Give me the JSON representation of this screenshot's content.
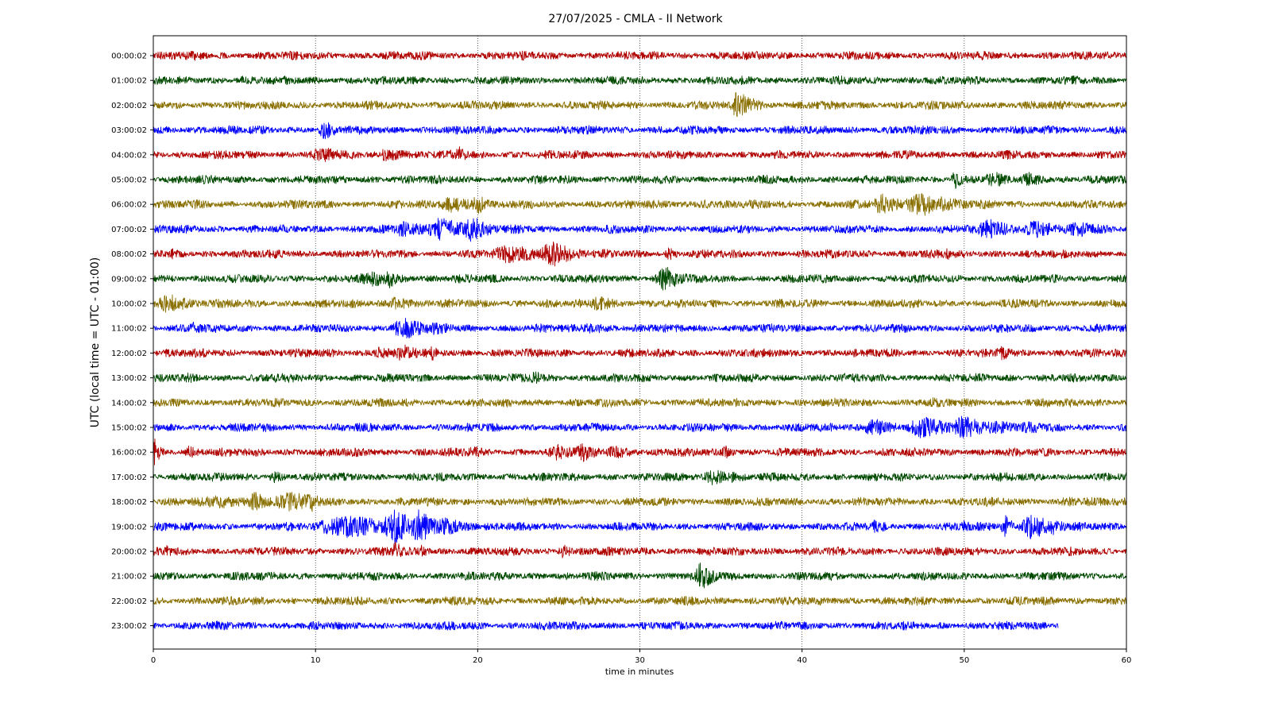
{
  "chart_data": {
    "type": "line",
    "title": "27/07/2025 - CMLA - II Network",
    "xlabel": "time in minutes",
    "ylabel": "UTC (local time = UTC - 01:00)",
    "xlim": [
      0,
      60
    ],
    "x_ticks": [
      0,
      10,
      20,
      30,
      40,
      50,
      60
    ],
    "grid": "vertical dotted",
    "color_cycle": [
      "#b00000",
      "#004a00",
      "#8a7000",
      "#0000ff"
    ],
    "series": [
      {
        "name": "00:00:02",
        "end": 60,
        "events": [
          {
            "t": 2.7,
            "amp": 1.8,
            "dur": 0.6
          }
        ]
      },
      {
        "name": "01:00:02",
        "end": 60,
        "events": [
          {
            "t": 5.5,
            "amp": 1.4,
            "dur": 0.5
          }
        ]
      },
      {
        "name": "02:00:02",
        "end": 60,
        "events": [
          {
            "t": 36.1,
            "amp": 4.5,
            "dur": 1.0
          }
        ]
      },
      {
        "name": "03:00:02",
        "end": 60,
        "events": [
          {
            "t": 10.6,
            "amp": 3.0,
            "dur": 0.8
          }
        ]
      },
      {
        "name": "04:00:02",
        "end": 60,
        "events": [
          {
            "t": 10.5,
            "amp": 2.3,
            "dur": 2.0
          },
          {
            "t": 14.5,
            "amp": 2.0,
            "dur": 2.0
          },
          {
            "t": 18.9,
            "amp": 2.6,
            "dur": 0.6
          }
        ]
      },
      {
        "name": "05:00:02",
        "end": 60,
        "events": [
          {
            "t": 49.5,
            "amp": 3.0,
            "dur": 0.6
          },
          {
            "t": 51.8,
            "amp": 2.6,
            "dur": 1.2
          },
          {
            "t": 54.0,
            "amp": 2.3,
            "dur": 1.2
          }
        ]
      },
      {
        "name": "06:00:02",
        "end": 60,
        "events": [
          {
            "t": 18.5,
            "amp": 2.5,
            "dur": 2.0
          },
          {
            "t": 20.0,
            "amp": 3.0,
            "dur": 0.8
          },
          {
            "t": 45.0,
            "amp": 3.5,
            "dur": 1.2
          },
          {
            "t": 47.5,
            "amp": 3.5,
            "dur": 2.5
          },
          {
            "t": 34.0,
            "amp": 1.6,
            "dur": 1.0
          }
        ]
      },
      {
        "name": "07:00:02",
        "end": 60,
        "events": [
          {
            "t": 15.5,
            "amp": 2.5,
            "dur": 2.0
          },
          {
            "t": 17.8,
            "amp": 3.8,
            "dur": 1.8
          },
          {
            "t": 19.7,
            "amp": 4.0,
            "dur": 1.2
          },
          {
            "t": 51.5,
            "amp": 3.3,
            "dur": 1.5
          },
          {
            "t": 54.5,
            "amp": 2.6,
            "dur": 2.0
          },
          {
            "t": 57.0,
            "amp": 2.6,
            "dur": 2.0
          }
        ]
      },
      {
        "name": "08:00:02",
        "end": 60,
        "events": [
          {
            "t": 22.0,
            "amp": 3.0,
            "dur": 2.5
          },
          {
            "t": 24.6,
            "amp": 4.0,
            "dur": 1.5
          },
          {
            "t": 31.8,
            "amp": 2.0,
            "dur": 0.6
          },
          {
            "t": 49.0,
            "amp": 1.8,
            "dur": 0.6
          },
          {
            "t": 1.2,
            "amp": 1.6,
            "dur": 1.0
          }
        ]
      },
      {
        "name": "09:00:02",
        "end": 60,
        "events": [
          {
            "t": 13.5,
            "amp": 2.5,
            "dur": 2.0
          },
          {
            "t": 14.6,
            "amp": 2.8,
            "dur": 0.8
          },
          {
            "t": 31.6,
            "amp": 3.8,
            "dur": 1.2
          }
        ]
      },
      {
        "name": "10:00:02",
        "end": 60,
        "events": [
          {
            "t": 1.0,
            "amp": 3.0,
            "dur": 1.5
          },
          {
            "t": 15.0,
            "amp": 2.0,
            "dur": 1.5
          },
          {
            "t": 27.5,
            "amp": 2.2,
            "dur": 1.5
          }
        ]
      },
      {
        "name": "11:00:02",
        "end": 60,
        "events": [
          {
            "t": 15.5,
            "amp": 3.5,
            "dur": 1.5
          },
          {
            "t": 17.5,
            "amp": 2.3,
            "dur": 1.0
          },
          {
            "t": 2.6,
            "amp": 2.0,
            "dur": 1.0
          },
          {
            "t": 27.0,
            "amp": 1.7,
            "dur": 2.0
          }
        ]
      },
      {
        "name": "12:00:02",
        "end": 60,
        "events": [
          {
            "t": 14.0,
            "amp": 2.2,
            "dur": 1.0
          },
          {
            "t": 15.4,
            "amp": 3.0,
            "dur": 1.0
          },
          {
            "t": 17.2,
            "amp": 2.5,
            "dur": 0.5
          },
          {
            "t": 52.3,
            "amp": 2.3,
            "dur": 0.8
          }
        ]
      },
      {
        "name": "13:00:02",
        "end": 60,
        "events": [
          {
            "t": 2.2,
            "amp": 1.8,
            "dur": 0.8
          },
          {
            "t": 7.5,
            "amp": 1.6,
            "dur": 0.6
          },
          {
            "t": 23.5,
            "amp": 2.0,
            "dur": 1.2
          },
          {
            "t": 15.0,
            "amp": 1.6,
            "dur": 0.5
          }
        ]
      },
      {
        "name": "14:00:02",
        "end": 60,
        "events": [
          {
            "t": 48.2,
            "amp": 1.6,
            "dur": 1.2
          },
          {
            "t": 55.0,
            "amp": 1.5,
            "dur": 1.0
          }
        ]
      },
      {
        "name": "15:00:02",
        "end": 60,
        "events": [
          {
            "t": 44.5,
            "amp": 2.8,
            "dur": 1.5
          },
          {
            "t": 47.5,
            "amp": 3.3,
            "dur": 2.0
          },
          {
            "t": 50.0,
            "amp": 3.7,
            "dur": 1.5
          },
          {
            "t": 52.0,
            "amp": 2.6,
            "dur": 1.5
          },
          {
            "t": 54.0,
            "amp": 2.0,
            "dur": 1.5
          }
        ]
      },
      {
        "name": "16:00:02",
        "end": 60,
        "events": [
          {
            "t": 0.1,
            "amp": 4.0,
            "dur": 0.4
          },
          {
            "t": 2.2,
            "amp": 2.0,
            "dur": 0.8
          },
          {
            "t": 19.8,
            "amp": 2.0,
            "dur": 1.2
          },
          {
            "t": 25.0,
            "amp": 2.6,
            "dur": 1.5
          },
          {
            "t": 26.5,
            "amp": 3.0,
            "dur": 1.0
          },
          {
            "t": 28.5,
            "amp": 2.0,
            "dur": 1.5
          },
          {
            "t": 35.3,
            "amp": 2.0,
            "dur": 0.6
          }
        ]
      },
      {
        "name": "17:00:02",
        "end": 60,
        "events": [
          {
            "t": 7.5,
            "amp": 1.8,
            "dur": 1.0
          },
          {
            "t": 34.5,
            "amp": 2.6,
            "dur": 1.2
          },
          {
            "t": 35.8,
            "amp": 2.0,
            "dur": 1.0
          }
        ]
      },
      {
        "name": "18:00:02",
        "end": 60,
        "events": [
          {
            "t": 4.0,
            "amp": 2.2,
            "dur": 2.5
          },
          {
            "t": 6.3,
            "amp": 3.0,
            "dur": 1.0
          },
          {
            "t": 8.5,
            "amp": 3.0,
            "dur": 2.5
          },
          {
            "t": 9.7,
            "amp": 3.5,
            "dur": 0.6
          },
          {
            "t": 51.5,
            "amp": 1.6,
            "dur": 1.0
          },
          {
            "t": 56.5,
            "amp": 1.6,
            "dur": 1.5
          }
        ]
      },
      {
        "name": "19:00:02",
        "end": 60,
        "events": [
          {
            "t": 12.0,
            "amp": 3.5,
            "dur": 4.0
          },
          {
            "t": 14.9,
            "amp": 5.5,
            "dur": 1.5
          },
          {
            "t": 16.4,
            "amp": 5.5,
            "dur": 1.2
          },
          {
            "t": 18.0,
            "amp": 3.0,
            "dur": 1.5
          },
          {
            "t": 44.6,
            "amp": 2.3,
            "dur": 0.8
          },
          {
            "t": 50.0,
            "amp": 2.0,
            "dur": 0.6
          },
          {
            "t": 52.5,
            "amp": 3.8,
            "dur": 0.5
          },
          {
            "t": 54.2,
            "amp": 4.0,
            "dur": 1.5
          },
          {
            "t": 55.5,
            "amp": 2.5,
            "dur": 1.0
          }
        ]
      },
      {
        "name": "20:00:02",
        "end": 60,
        "events": [
          {
            "t": 0.8,
            "amp": 2.0,
            "dur": 0.6
          },
          {
            "t": 15.0,
            "amp": 3.0,
            "dur": 0.6
          },
          {
            "t": 16.5,
            "amp": 2.6,
            "dur": 0.5
          },
          {
            "t": 25.3,
            "amp": 2.3,
            "dur": 0.6
          }
        ]
      },
      {
        "name": "21:00:02",
        "end": 60,
        "events": [
          {
            "t": 33.8,
            "amp": 4.5,
            "dur": 0.8
          },
          {
            "t": 5.5,
            "amp": 1.5,
            "dur": 0.6
          }
        ]
      },
      {
        "name": "22:00:02",
        "end": 60,
        "events": [
          {
            "t": 18.0,
            "amp": 1.4,
            "dur": 0.6
          },
          {
            "t": 33.5,
            "amp": 1.4,
            "dur": 0.6
          }
        ]
      },
      {
        "name": "23:00:02",
        "end": 55.8,
        "events": [
          {
            "t": 26.5,
            "amp": 1.3,
            "dur": 0.6
          }
        ]
      }
    ]
  }
}
